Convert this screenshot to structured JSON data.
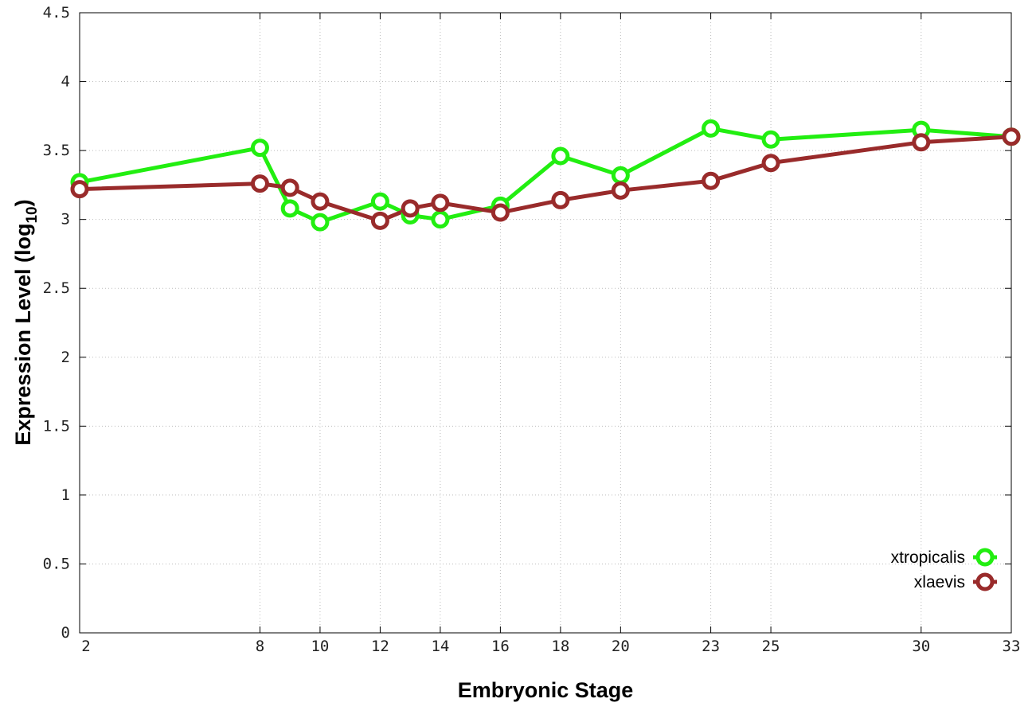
{
  "chart_data": {
    "type": "line",
    "title": "",
    "xlabel": "Embryonic Stage",
    "ylabel": "Expression Level (log10)",
    "ylabel_main": "Expression Level (log",
    "ylabel_sub": "10",
    "ylabel_close": ")",
    "xlim": [
      2,
      33
    ],
    "ylim": [
      0,
      4.5
    ],
    "x_ticks": [
      2,
      8,
      10,
      12,
      14,
      16,
      18,
      20,
      23,
      25,
      30,
      33
    ],
    "y_ticks": [
      0,
      0.5,
      1,
      1.5,
      2,
      2.5,
      3,
      3.5,
      4,
      4.5
    ],
    "y_tick_labels": [
      "0",
      "0.5",
      "1",
      "1.5",
      "2",
      "2.5",
      "3",
      "3.5",
      "4",
      "4.5"
    ],
    "grid": true,
    "legend_position": "bottom-right",
    "x": [
      2,
      8,
      9,
      10,
      12,
      13,
      14,
      16,
      18,
      20,
      23,
      25,
      30,
      33
    ],
    "series": [
      {
        "name": "xtropicalis",
        "color": "#22ee11",
        "values": [
          3.27,
          3.52,
          3.08,
          2.98,
          3.13,
          3.03,
          3.0,
          3.1,
          3.46,
          3.32,
          3.66,
          3.58,
          3.65,
          3.6
        ]
      },
      {
        "name": "xlaevis",
        "color": "#992b2b",
        "values": [
          3.22,
          3.26,
          3.23,
          3.13,
          2.99,
          3.08,
          3.12,
          3.05,
          3.14,
          3.21,
          3.28,
          3.41,
          3.56,
          3.6
        ]
      }
    ]
  }
}
